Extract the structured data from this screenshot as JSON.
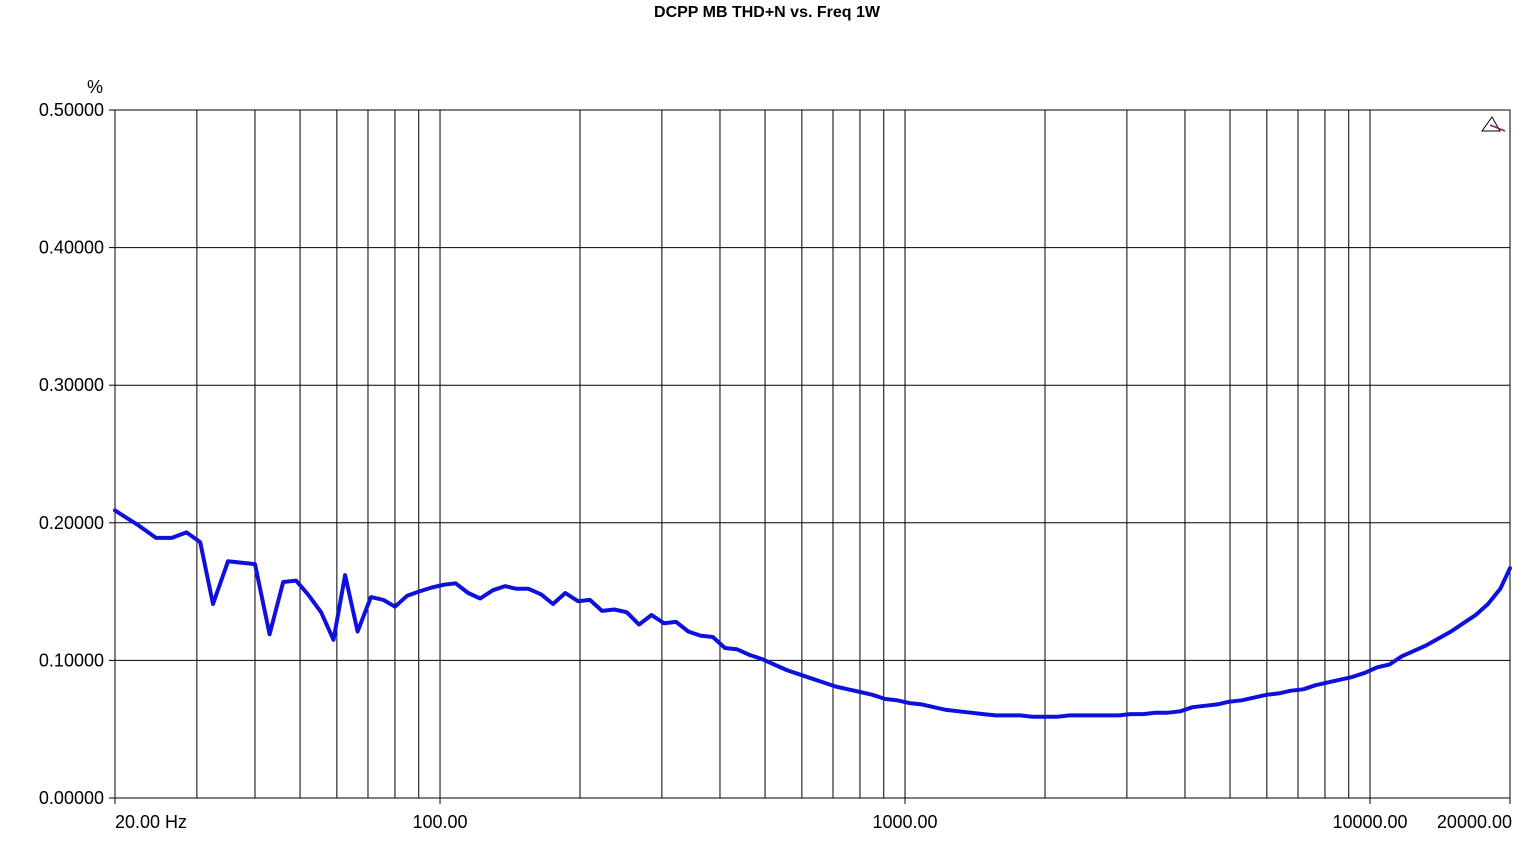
{
  "chart_data": {
    "type": "line",
    "title": "DCPP MB THD+N vs. Freq 1W",
    "ylabel": "%",
    "xlabel": "",
    "xscale": "log",
    "xlim": [
      20,
      20000
    ],
    "ylim": [
      0,
      0.5
    ],
    "grid": true,
    "x_ticks": [
      20,
      100,
      1000,
      10000,
      20000
    ],
    "x_tick_labels": [
      "20.00 Hz",
      "100.00",
      "1000.00",
      "10000.00",
      "20000.00"
    ],
    "y_ticks": [
      0,
      0.1,
      0.2,
      0.3,
      0.4,
      0.5
    ],
    "y_tick_labels": [
      "0.00000",
      "0.10000",
      "0.20000",
      "0.30000",
      "0.40000",
      "0.50000"
    ],
    "line_color": "#1010dd",
    "grid_color": "#000000",
    "series": [
      {
        "points": [
          [
            20,
            0.209
          ],
          [
            22.5,
            0.198
          ],
          [
            24.5,
            0.189
          ],
          [
            26.5,
            0.189
          ],
          [
            28.5,
            0.193
          ],
          [
            30.5,
            0.186
          ],
          [
            32.5,
            0.141
          ],
          [
            35,
            0.172
          ],
          [
            37.5,
            0.171
          ],
          [
            40,
            0.17
          ],
          [
            43,
            0.119
          ],
          [
            46,
            0.157
          ],
          [
            49,
            0.158
          ],
          [
            52,
            0.148
          ],
          [
            55.5,
            0.135
          ],
          [
            59,
            0.115
          ],
          [
            62.5,
            0.162
          ],
          [
            66.5,
            0.121
          ],
          [
            71,
            0.146
          ],
          [
            75.5,
            0.144
          ],
          [
            80,
            0.139
          ],
          [
            85,
            0.147
          ],
          [
            90,
            0.15
          ],
          [
            96,
            0.153
          ],
          [
            102,
            0.155
          ],
          [
            108,
            0.156
          ],
          [
            115,
            0.149
          ],
          [
            122,
            0.145
          ],
          [
            130,
            0.151
          ],
          [
            138,
            0.154
          ],
          [
            146,
            0.152
          ],
          [
            155,
            0.152
          ],
          [
            165,
            0.148
          ],
          [
            175,
            0.141
          ],
          [
            186,
            0.149
          ],
          [
            198,
            0.143
          ],
          [
            210,
            0.144
          ],
          [
            223,
            0.136
          ],
          [
            237,
            0.137
          ],
          [
            252,
            0.135
          ],
          [
            268,
            0.126
          ],
          [
            285,
            0.133
          ],
          [
            303,
            0.127
          ],
          [
            322,
            0.128
          ],
          [
            342,
            0.121
          ],
          [
            363,
            0.118
          ],
          [
            386,
            0.117
          ],
          [
            410,
            0.109
          ],
          [
            436,
            0.108
          ],
          [
            463,
            0.104
          ],
          [
            492,
            0.101
          ],
          [
            523,
            0.097
          ],
          [
            556,
            0.093
          ],
          [
            591,
            0.09
          ],
          [
            628,
            0.087
          ],
          [
            667,
            0.084
          ],
          [
            709,
            0.081
          ],
          [
            754,
            0.079
          ],
          [
            801,
            0.077
          ],
          [
            851,
            0.075
          ],
          [
            905,
            0.072
          ],
          [
            962,
            0.071
          ],
          [
            1022,
            0.069
          ],
          [
            1086,
            0.068
          ],
          [
            1154,
            0.066
          ],
          [
            1227,
            0.064
          ],
          [
            1304,
            0.063
          ],
          [
            1386,
            0.062
          ],
          [
            1473,
            0.061
          ],
          [
            1566,
            0.06
          ],
          [
            1664,
            0.06
          ],
          [
            1769,
            0.06
          ],
          [
            1880,
            0.059
          ],
          [
            1998,
            0.059
          ],
          [
            2124,
            0.059
          ],
          [
            2257,
            0.06
          ],
          [
            2399,
            0.06
          ],
          [
            2550,
            0.06
          ],
          [
            2710,
            0.06
          ],
          [
            2880,
            0.06
          ],
          [
            3061,
            0.061
          ],
          [
            3254,
            0.061
          ],
          [
            3458,
            0.062
          ],
          [
            3676,
            0.062
          ],
          [
            3907,
            0.063
          ],
          [
            4152,
            0.066
          ],
          [
            4413,
            0.067
          ],
          [
            4691,
            0.068
          ],
          [
            4985,
            0.07
          ],
          [
            5299,
            0.071
          ],
          [
            5632,
            0.073
          ],
          [
            5986,
            0.075
          ],
          [
            6362,
            0.076
          ],
          [
            6762,
            0.078
          ],
          [
            7187,
            0.079
          ],
          [
            7639,
            0.082
          ],
          [
            8119,
            0.084
          ],
          [
            8629,
            0.086
          ],
          [
            9171,
            0.088
          ],
          [
            9748,
            0.091
          ],
          [
            10361,
            0.095
          ],
          [
            11012,
            0.097
          ],
          [
            11704,
            0.103
          ],
          [
            12440,
            0.107
          ],
          [
            13222,
            0.111
          ],
          [
            14053,
            0.116
          ],
          [
            14936,
            0.121
          ],
          [
            15875,
            0.127
          ],
          [
            16873,
            0.133
          ],
          [
            17933,
            0.141
          ],
          [
            19060,
            0.152
          ],
          [
            20000,
            0.167
          ]
        ]
      }
    ]
  }
}
